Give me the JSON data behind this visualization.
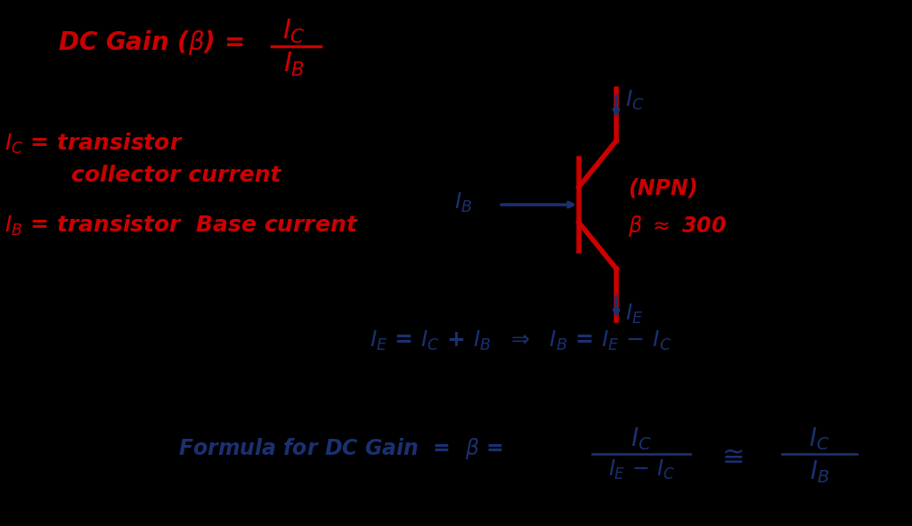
{
  "background_color": "#000000",
  "red_color": "#cc0000",
  "blue_color": "#1a3070",
  "fig_width": 10.24,
  "fig_height": 5.91,
  "dpi": 100
}
